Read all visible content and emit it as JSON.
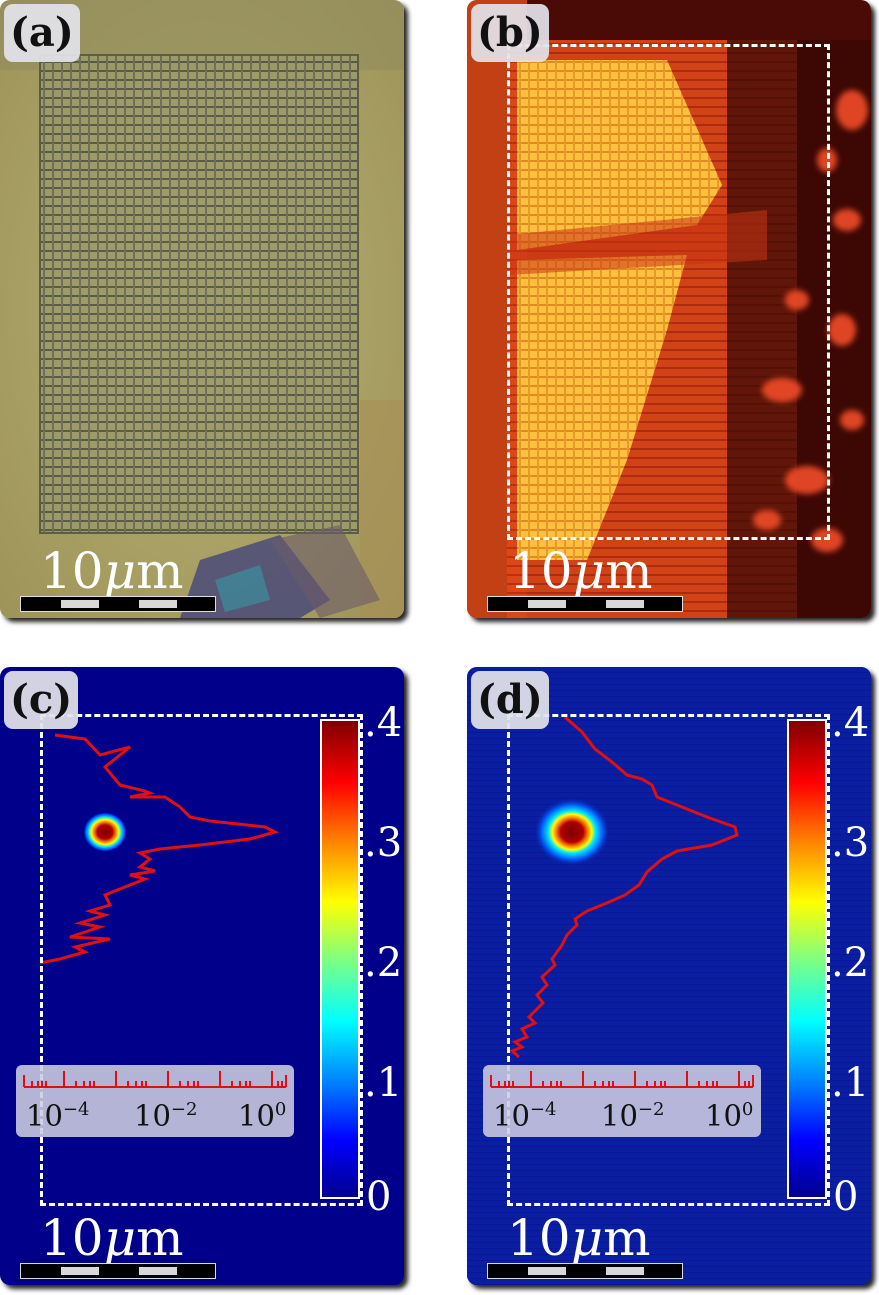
{
  "panels": {
    "a": {
      "tag": "(a)",
      "scale_num": "10",
      "scale_mu": "μ",
      "scale_unit": "m"
    },
    "b": {
      "tag": "(b)",
      "scale_num": "10",
      "scale_mu": "μ",
      "scale_unit": "m"
    },
    "c": {
      "tag": "(c)",
      "scale_num": "10",
      "scale_mu": "μ",
      "scale_unit": "m",
      "colorbar_ticks": [
        "0",
        ".1",
        ".2",
        ".3",
        ".4"
      ],
      "axis_base": "10",
      "axis_exps": [
        "−4",
        "−2",
        "0"
      ]
    },
    "d": {
      "tag": "(d)",
      "scale_num": "10",
      "scale_mu": "μ",
      "scale_unit": "m",
      "colorbar_ticks": [
        "0",
        ".1",
        ".2",
        ".3",
        ".4"
      ],
      "axis_base": "10",
      "axis_exps": [
        "−4",
        "−2",
        "0"
      ]
    }
  },
  "colors": {
    "profile_line": "#e01010",
    "map_background": "#00008b"
  }
}
